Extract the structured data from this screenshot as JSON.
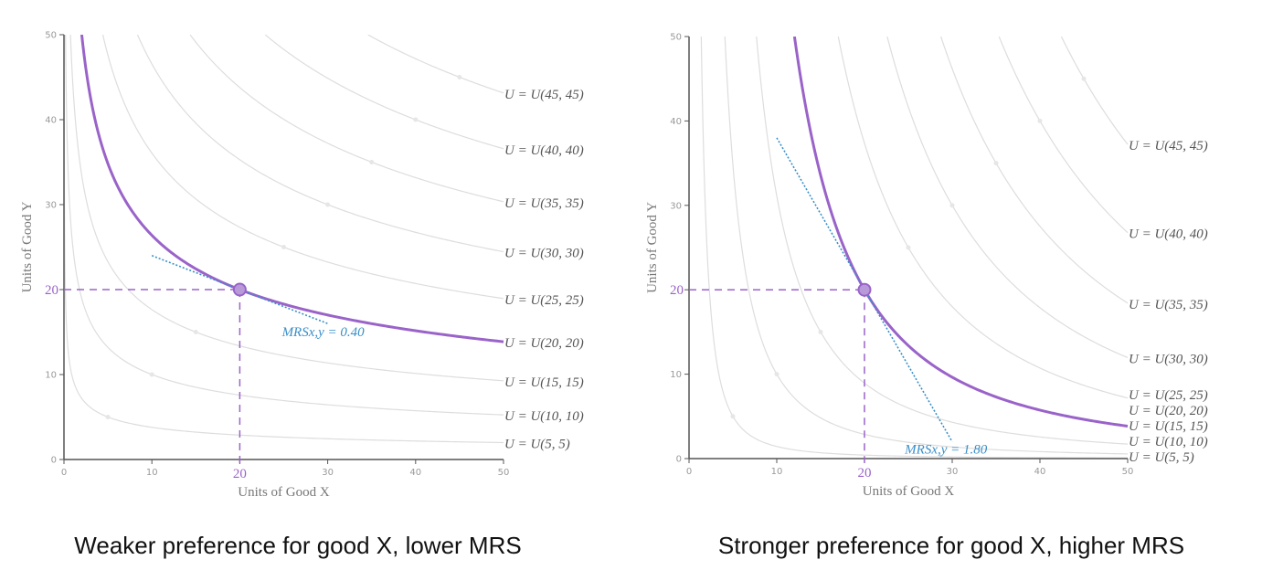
{
  "chart_data": [
    {
      "type": "line",
      "xlabel": "Units of Good X",
      "ylabel": "Units of Good Y",
      "xlim": [
        0,
        50
      ],
      "ylim": [
        0,
        50
      ],
      "xticks": [
        0,
        10,
        20,
        30,
        40,
        50
      ],
      "yticks": [
        0,
        10,
        20,
        30,
        40,
        50
      ],
      "utility_levels": [
        5,
        10,
        15,
        20,
        25,
        30,
        35,
        40,
        45
      ],
      "curve_labels": [
        "U = U(5, 5)",
        "U = U(10, 10)",
        "U = U(15, 15)",
        "U = U(20, 20)",
        "U = U(25, 25)",
        "U = U(30, 30)",
        "U = U(35, 35)",
        "U = U(40, 40)",
        "U = U(45, 45)"
      ],
      "highlighted_level": 20,
      "point": {
        "x": 20,
        "y": 20,
        "x_label": "20",
        "y_label": "20"
      },
      "mrs": 0.4,
      "mrs_label": "MRSx,y = 0.40",
      "tangent_x_range": [
        10,
        30
      ],
      "caption": "Weaker preference for good X, lower MRS"
    },
    {
      "type": "line",
      "xlabel": "Units of Good X",
      "ylabel": "Units of Good Y",
      "xlim": [
        0,
        50
      ],
      "ylim": [
        0,
        50
      ],
      "xticks": [
        0,
        10,
        20,
        30,
        40,
        50
      ],
      "yticks": [
        0,
        10,
        20,
        30,
        40,
        50
      ],
      "utility_levels": [
        5,
        10,
        15,
        20,
        25,
        30,
        35,
        40,
        45
      ],
      "curve_labels": [
        "U = U(5, 5)",
        "U = U(10, 10)",
        "U = U(15, 15)",
        "U = U(20, 20)",
        "U = U(25, 25)",
        "U = U(30, 30)",
        "U = U(35, 35)",
        "U = U(40, 40)",
        "U = U(45, 45)"
      ],
      "highlighted_level": 20,
      "point": {
        "x": 20,
        "y": 20,
        "x_label": "20",
        "y_label": "20"
      },
      "mrs": 1.8,
      "mrs_label": "MRSx,y = 1.80",
      "tangent_x_range": [
        10,
        30
      ],
      "caption": "Stronger preference for good X, higher MRS"
    }
  ],
  "colors": {
    "highlight": "#9a63c9",
    "point_fill": "#b99ad9",
    "tangent": "#3a8fc8",
    "curve": "#dddddd",
    "axis": "#555555"
  }
}
